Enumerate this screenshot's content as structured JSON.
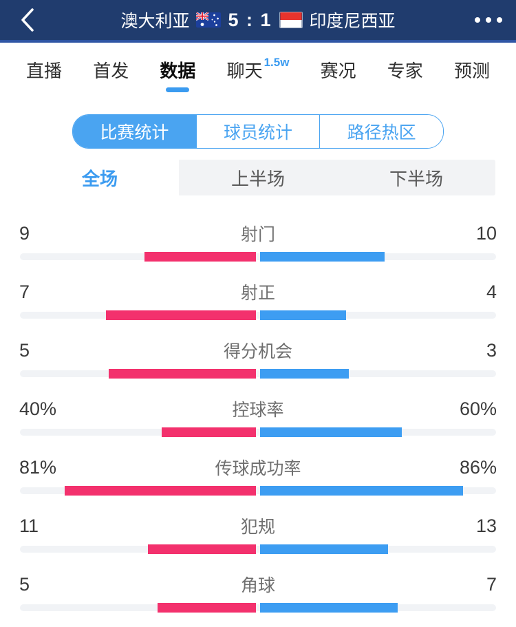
{
  "header": {
    "home_team": "澳大利亚",
    "score": "5 : 1",
    "away_team": "印度尼西亚"
  },
  "tabs": {
    "items": [
      {
        "label": "直播",
        "selected": false
      },
      {
        "label": "首发",
        "selected": false
      },
      {
        "label": "数据",
        "selected": true
      },
      {
        "label": "聊天",
        "badge": "1.5w",
        "selected": false
      },
      {
        "label": "赛况",
        "selected": false
      },
      {
        "label": "专家",
        "selected": false
      },
      {
        "label": "预测",
        "selected": false
      }
    ]
  },
  "stat_tabs": {
    "items": [
      {
        "label": "比赛统计",
        "selected": true
      },
      {
        "label": "球员统计",
        "selected": false
      },
      {
        "label": "路径热区",
        "selected": false
      }
    ]
  },
  "period_tabs": {
    "items": [
      {
        "label": "全场",
        "selected": true
      },
      {
        "label": "上半场",
        "selected": false
      },
      {
        "label": "下半场",
        "selected": false
      }
    ]
  },
  "chart_data": {
    "type": "bar",
    "title": "比赛统计 · 全场",
    "left_team": "澳大利亚",
    "right_team": "印度尼西亚",
    "rows": [
      {
        "label": "射门",
        "left_display": "9",
        "right_display": "10",
        "left_value": 9,
        "right_value": 10,
        "percent": false
      },
      {
        "label": "射正",
        "left_display": "7",
        "right_display": "4",
        "left_value": 7,
        "right_value": 4,
        "percent": false
      },
      {
        "label": "得分机会",
        "left_display": "5",
        "right_display": "3",
        "left_value": 5,
        "right_value": 3,
        "percent": false
      },
      {
        "label": "控球率",
        "left_display": "40%",
        "right_display": "60%",
        "left_value": 40,
        "right_value": 60,
        "percent": true
      },
      {
        "label": "传球成功率",
        "left_display": "81%",
        "right_display": "86%",
        "left_value": 81,
        "right_value": 86,
        "percent": true
      },
      {
        "label": "犯规",
        "left_display": "11",
        "right_display": "13",
        "left_value": 11,
        "right_value": 13,
        "percent": false
      },
      {
        "label": "角球",
        "left_display": "5",
        "right_display": "7",
        "left_value": 5,
        "right_value": 7,
        "percent": false
      }
    ]
  },
  "colors": {
    "header_bg": "#203c6e",
    "header_line": "#2f55a4",
    "accent_blue": "#3b9bf0",
    "segment_blue": "#4aa4f1",
    "home_bar_pink": "#f3316d",
    "away_bar_blue": "#3d9df2",
    "bar_track": "#f1f3f6"
  }
}
